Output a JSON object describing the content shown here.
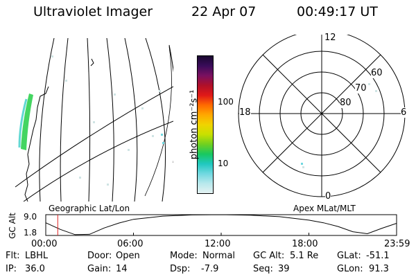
{
  "header": {
    "title": "Ultraviolet Imager",
    "date": "22 Apr 07",
    "time": "00:49:17 UT"
  },
  "colorbar": {
    "unit_label": "photon cm⁻²s⁻¹",
    "scale": "log",
    "ticks": [
      "100",
      "10"
    ],
    "colors": [
      "#1a0830",
      "#3a0c5a",
      "#7a1060",
      "#b01028",
      "#e01818",
      "#ff6a00",
      "#ffa800",
      "#f0d400",
      "#c8e000",
      "#70d020",
      "#18c860",
      "#20c8c0",
      "#70d8e0",
      "#b8e8ec",
      "#e4f2f2"
    ]
  },
  "geo_panel": {
    "label": "Geographic Lat/Lon"
  },
  "polar_panel": {
    "label": "Apex MLat/MLT",
    "mlt_labels": {
      "top": "12",
      "bottom": "0",
      "left": "18",
      "right": "6"
    },
    "lat_labels": [
      "60",
      "70",
      "80"
    ]
  },
  "chart_data": {
    "type": "line",
    "title": "",
    "ylabel": "GC Alt",
    "yticks": [
      "9.0",
      "1.8"
    ],
    "ylim": [
      1.8,
      9.0
    ],
    "xticks": [
      "00:00",
      "06:00",
      "12:00",
      "18:00",
      "23:59"
    ],
    "xlim_hours": [
      0,
      24
    ],
    "current_time_hours": 0.82,
    "series": [
      {
        "x": [
          0,
          1,
          2,
          3,
          4,
          5,
          6,
          8,
          10,
          12,
          14,
          16,
          18,
          19,
          20,
          21,
          22,
          23,
          24
        ],
        "y": [
          6.2,
          3.9,
          2.1,
          2.2,
          4.4,
          6.1,
          7.4,
          8.5,
          8.9,
          9.0,
          8.8,
          8.3,
          7.1,
          6.2,
          4.9,
          3.1,
          2.4,
          4.3,
          6.0
        ]
      }
    ]
  },
  "footer": {
    "row1": [
      {
        "label": "Flt:",
        "value": "LBHL"
      },
      {
        "label": "Door:",
        "value": "Open"
      },
      {
        "label": "Mode:",
        "value": "Normal"
      },
      {
        "label": "GC Alt:",
        "value": "5.1 Re"
      },
      {
        "label": "GLat:",
        "value": "-51.1"
      }
    ],
    "row2": [
      {
        "label": "IP:",
        "value": "36.0"
      },
      {
        "label": "Gain:",
        "value": "14"
      },
      {
        "label": "Dsp:",
        "value": "-7.9"
      },
      {
        "label": "Seq:",
        "value": "39"
      },
      {
        "label": "GLon:",
        "value": "91.3"
      }
    ]
  }
}
